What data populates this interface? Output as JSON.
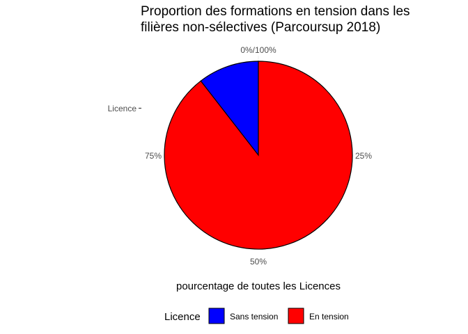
{
  "chart_data": {
    "type": "pie",
    "title": "Proportion des formations en tension dans les filières non-sélectives (Parcoursup 2018)",
    "title_lines": [
      "Proportion des formations en tension dans les",
      "filières non-sélectives (Parcoursup 2018)"
    ],
    "category_axis_label": "Licence",
    "xlabel": "pourcentage de toutes les Licences",
    "angle_ticks": [
      "0%/100%",
      "25%",
      "50%",
      "75%"
    ],
    "legend": {
      "title": "Licence",
      "position": "bottom"
    },
    "slices": [
      {
        "label": "Sans tension",
        "value": 10.5,
        "color": "#0000FF"
      },
      {
        "label": "En tension",
        "value": 89.5,
        "color": "#FF0000"
      }
    ],
    "grid": false,
    "outline_color": "#000000"
  }
}
